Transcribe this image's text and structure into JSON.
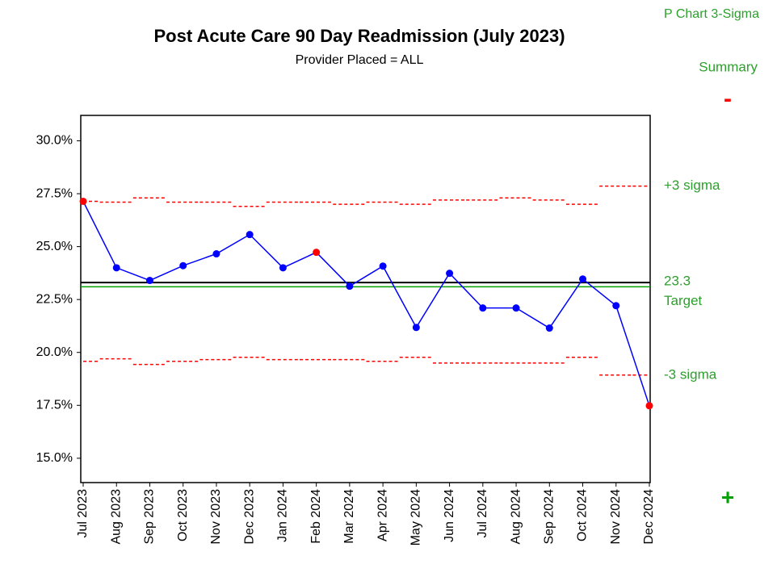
{
  "chart_data": {
    "type": "pchart",
    "title": "Post Acute Care 90 Day Readmission (July 2023)",
    "subtitle": "Provider Placed = ALL",
    "chart_label": "P Chart 3-Sigma",
    "summary_label": "Summary",
    "minus_symbol": "-",
    "plus_symbol": "+",
    "ucl_label": "+3 sigma",
    "lcl_label": "-3 sigma",
    "target_label": "Target",
    "categories": [
      "Jul 2023",
      "Aug 2023",
      "Sep 2023",
      "Oct 2023",
      "Nov 2023",
      "Dec 2023",
      "Jan 2024",
      "Feb 2024",
      "Mar 2024",
      "Apr 2024",
      "May 2024",
      "Jun 2024",
      "Jul 2024",
      "Aug 2024",
      "Sep 2024",
      "Oct 2024",
      "Nov 2024",
      "Dec 2024"
    ],
    "values": [
      27.14,
      24.0,
      23.4,
      24.1,
      24.66,
      25.57,
      24.0,
      24.73,
      23.13,
      24.08,
      21.18,
      23.74,
      22.1,
      22.1,
      21.15,
      23.47,
      22.21,
      17.48
    ],
    "color": "#0000ff",
    "point_colors": [
      "#ff0000",
      "#0000ff",
      "#0000ff",
      "#0000ff",
      "#0000ff",
      "#0000ff",
      "#0000ff",
      "#ff0000",
      "#0000ff",
      "#0000ff",
      "#0000ff",
      "#0000ff",
      "#0000ff",
      "#0000ff",
      "#0000ff",
      "#0000ff",
      "#0000ff",
      "#ff0000"
    ],
    "ucl": [
      27.14,
      27.1,
      27.3,
      27.1,
      27.1,
      26.9,
      27.1,
      27.1,
      27.0,
      27.1,
      27.0,
      27.2,
      27.2,
      27.3,
      27.2,
      27.0,
      27.86,
      27.86
    ],
    "lcl": [
      19.58,
      19.7,
      19.43,
      19.58,
      19.66,
      19.77,
      19.66,
      19.66,
      19.66,
      19.58,
      19.77,
      19.5,
      19.5,
      19.5,
      19.5,
      19.77,
      18.93,
      18.93
    ],
    "limit_color": "#ff0000",
    "center": 23.3,
    "center_color": "#000000",
    "target": 23.1,
    "target_color": "#00a000",
    "ylim": [
      13.85,
      31.2
    ],
    "yticks": [
      {
        "value": 30,
        "label": "30.0%"
      },
      {
        "value": 27.5,
        "label": "27.5%"
      },
      {
        "value": 25,
        "label": "25.0%"
      },
      {
        "value": 22.5,
        "label": "22.5%"
      },
      {
        "value": 20,
        "label": "20.0%"
      },
      {
        "value": 17.5,
        "label": "17.5%"
      },
      {
        "value": 15,
        "label": "15.0%"
      }
    ]
  }
}
